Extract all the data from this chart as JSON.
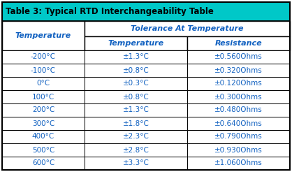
{
  "title": "Table 3: Typical RTD Interchangeability Table",
  "title_bg": "#00C8C8",
  "border_color": "#000000",
  "col1_header": "Temperature",
  "span_header": "Tolerance At Temperature",
  "col2_header": "Temperature",
  "col3_header": "Resistance",
  "rows": [
    [
      "-200°C",
      "±1.3°C",
      "±0.560Ohms"
    ],
    [
      "-100°C",
      "±0.8°C",
      "±0.320Ohms"
    ],
    [
      "0°C",
      "±0.3°C",
      "±0.120Ohms"
    ],
    [
      "100°C",
      "±0.8°C",
      "±0.300Ohms"
    ],
    [
      "200°C",
      "±1.3°C",
      "±0.480Ohms"
    ],
    [
      "300°C",
      "±1.8°C",
      "±0.640Ohms"
    ],
    [
      "400°C",
      "±2.3°C",
      "±0.790Ohms"
    ],
    [
      "500°C",
      "±2.8°C",
      "±0.930Ohms"
    ],
    [
      "600°C",
      "±3.3°C",
      "±1.060Ohms"
    ]
  ],
  "text_blue": "#1060C0",
  "black": "#000000",
  "white": "#ffffff",
  "figw": 4.18,
  "figh": 2.46,
  "dpi": 100
}
